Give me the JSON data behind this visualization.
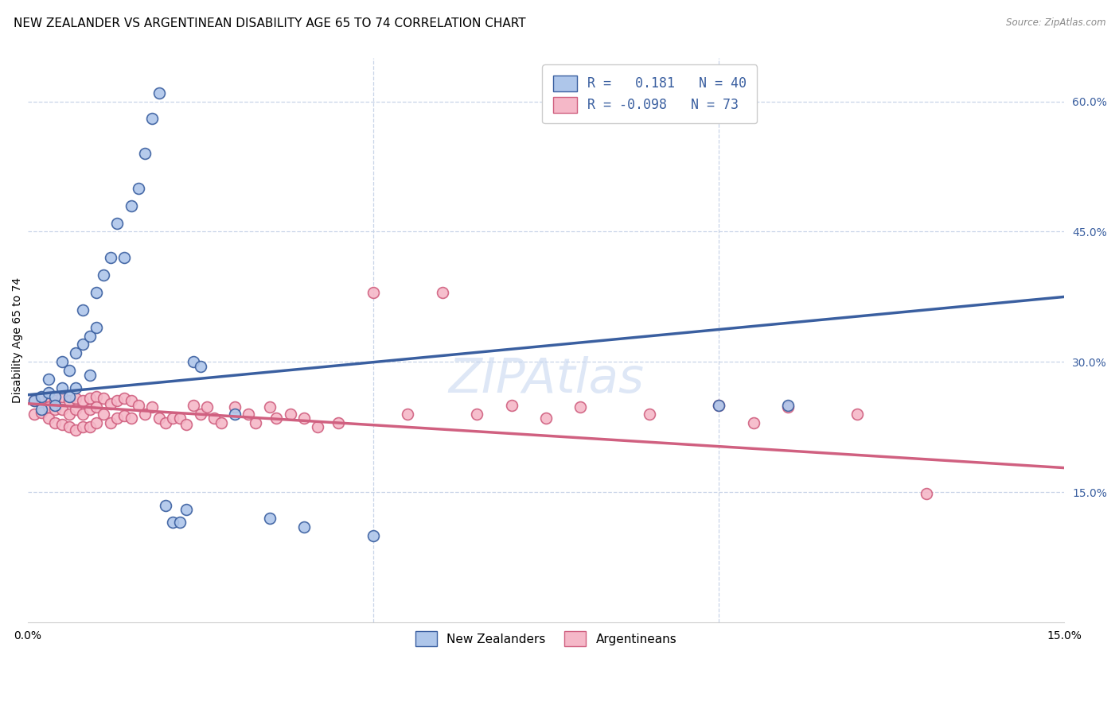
{
  "title": "NEW ZEALANDER VS ARGENTINEAN DISABILITY AGE 65 TO 74 CORRELATION CHART",
  "source": "Source: ZipAtlas.com",
  "ylabel": "Disability Age 65 to 74",
  "xlim": [
    0.0,
    0.15
  ],
  "ylim": [
    0.0,
    0.65
  ],
  "y_ticks_right": [
    0.15,
    0.3,
    0.45,
    0.6
  ],
  "y_tick_labels_right": [
    "15.0%",
    "30.0%",
    "45.0%",
    "60.0%"
  ],
  "nz_color": "#aec6ea",
  "arg_color": "#f5b8c8",
  "nz_line_color": "#3a5fa0",
  "arg_line_color": "#d06080",
  "background_color": "#ffffff",
  "grid_color": "#c8d4e8",
  "watermark": "ZIPAtlas",
  "legend_r_nz": " 0.181",
  "legend_n_nz": "40",
  "legend_r_arg": "-0.098",
  "legend_n_arg": "73",
  "nz_x": [
    0.001,
    0.002,
    0.002,
    0.003,
    0.003,
    0.004,
    0.004,
    0.005,
    0.005,
    0.006,
    0.006,
    0.007,
    0.007,
    0.008,
    0.008,
    0.009,
    0.009,
    0.01,
    0.01,
    0.011,
    0.012,
    0.013,
    0.014,
    0.015,
    0.016,
    0.017,
    0.018,
    0.019,
    0.02,
    0.021,
    0.022,
    0.023,
    0.024,
    0.025,
    0.03,
    0.035,
    0.04,
    0.05,
    0.1,
    0.11
  ],
  "nz_y": [
    0.255,
    0.26,
    0.245,
    0.28,
    0.265,
    0.26,
    0.25,
    0.3,
    0.27,
    0.29,
    0.26,
    0.31,
    0.27,
    0.36,
    0.32,
    0.33,
    0.285,
    0.38,
    0.34,
    0.4,
    0.42,
    0.46,
    0.42,
    0.48,
    0.5,
    0.54,
    0.58,
    0.61,
    0.135,
    0.115,
    0.115,
    0.13,
    0.3,
    0.295,
    0.24,
    0.12,
    0.11,
    0.1,
    0.25,
    0.25
  ],
  "arg_x": [
    0.001,
    0.001,
    0.002,
    0.002,
    0.003,
    0.003,
    0.003,
    0.004,
    0.004,
    0.004,
    0.005,
    0.005,
    0.005,
    0.006,
    0.006,
    0.006,
    0.007,
    0.007,
    0.007,
    0.008,
    0.008,
    0.008,
    0.009,
    0.009,
    0.009,
    0.01,
    0.01,
    0.01,
    0.011,
    0.011,
    0.012,
    0.012,
    0.013,
    0.013,
    0.014,
    0.014,
    0.015,
    0.015,
    0.016,
    0.017,
    0.018,
    0.019,
    0.02,
    0.021,
    0.022,
    0.023,
    0.024,
    0.025,
    0.026,
    0.027,
    0.028,
    0.03,
    0.032,
    0.033,
    0.035,
    0.036,
    0.038,
    0.04,
    0.042,
    0.045,
    0.05,
    0.055,
    0.06,
    0.065,
    0.07,
    0.075,
    0.08,
    0.09,
    0.1,
    0.105,
    0.11,
    0.12,
    0.13
  ],
  "arg_y": [
    0.255,
    0.24,
    0.258,
    0.242,
    0.26,
    0.248,
    0.235,
    0.255,
    0.245,
    0.23,
    0.26,
    0.245,
    0.228,
    0.255,
    0.24,
    0.225,
    0.258,
    0.245,
    0.222,
    0.255,
    0.24,
    0.225,
    0.258,
    0.245,
    0.225,
    0.26,
    0.248,
    0.23,
    0.258,
    0.24,
    0.252,
    0.23,
    0.255,
    0.235,
    0.258,
    0.238,
    0.255,
    0.235,
    0.25,
    0.24,
    0.248,
    0.235,
    0.23,
    0.235,
    0.235,
    0.228,
    0.25,
    0.24,
    0.248,
    0.235,
    0.23,
    0.248,
    0.24,
    0.23,
    0.248,
    0.235,
    0.24,
    0.235,
    0.225,
    0.23,
    0.38,
    0.24,
    0.38,
    0.24,
    0.25,
    0.235,
    0.248,
    0.24,
    0.25,
    0.23,
    0.248,
    0.24,
    0.148
  ],
  "title_fontsize": 11,
  "axis_label_fontsize": 10,
  "tick_fontsize": 10,
  "marker_size": 100,
  "marker_linewidth": 1.2
}
